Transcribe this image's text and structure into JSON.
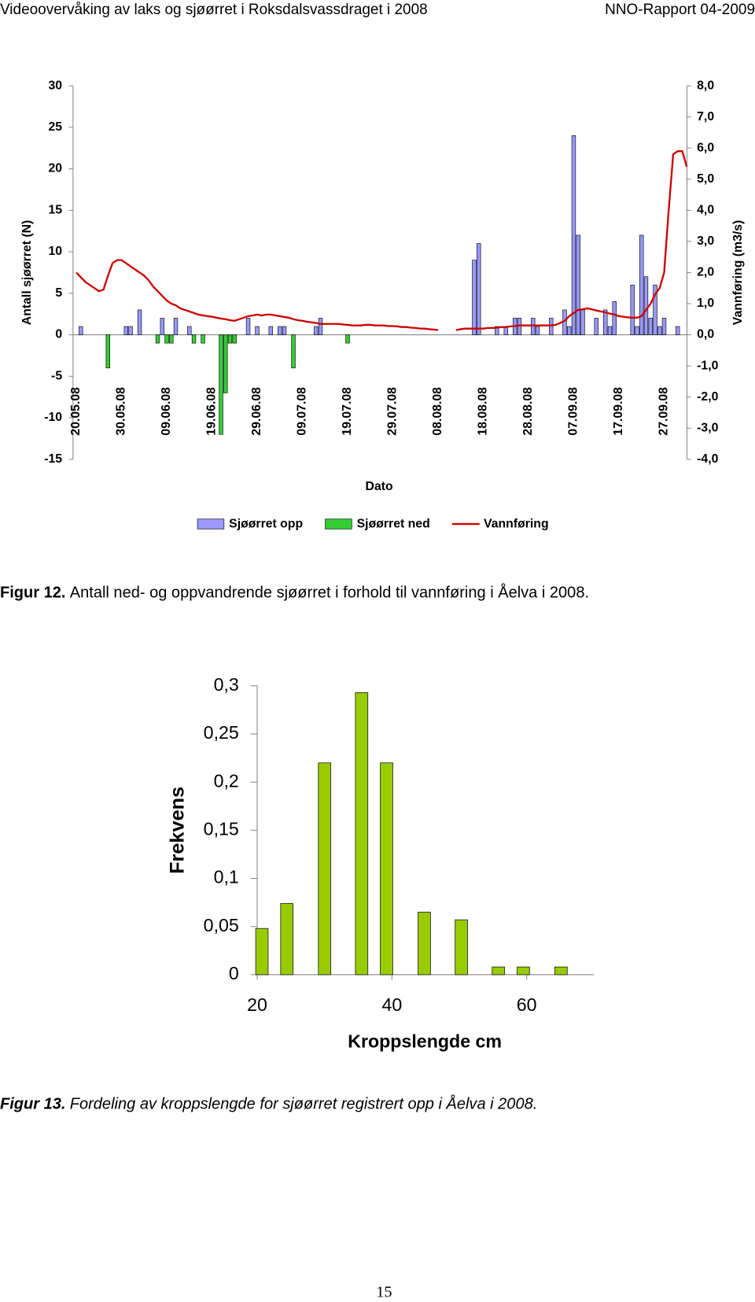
{
  "header": {
    "left": "Videoovervåking av laks og sjøørret i Roksdalsvassdraget i 2008",
    "right": "NNO-Rapport 04-2009"
  },
  "chart_data": [
    {
      "type": "bar",
      "x_label": "Dato",
      "y_label": "Antall sjøørret (N)",
      "y2_label": "Vannføring (m3/s)",
      "categories": [
        "20.05.08",
        null,
        null,
        null,
        null,
        null,
        null,
        null,
        null,
        null,
        "30.05.08",
        null,
        null,
        null,
        null,
        null,
        null,
        null,
        null,
        null,
        "09.06.08",
        null,
        null,
        null,
        null,
        null,
        null,
        null,
        null,
        null,
        "19.06.08",
        null,
        null,
        null,
        null,
        null,
        null,
        null,
        null,
        null,
        "29.06.08",
        null,
        null,
        null,
        null,
        null,
        null,
        null,
        null,
        null,
        "09.07.08",
        null,
        null,
        null,
        null,
        null,
        null,
        null,
        null,
        null,
        "19.07.08",
        null,
        null,
        null,
        null,
        null,
        null,
        null,
        null,
        null,
        "29.07.08",
        null,
        null,
        null,
        null,
        null,
        null,
        null,
        null,
        null,
        "08.08.08",
        null,
        null,
        null,
        null,
        null,
        null,
        null,
        null,
        null,
        "18.08.08",
        null,
        null,
        null,
        null,
        null,
        null,
        null,
        null,
        null,
        "28.08.08",
        null,
        null,
        null,
        null,
        null,
        null,
        null,
        null,
        null,
        "07.09.08",
        null,
        null,
        null,
        null,
        null,
        null,
        null,
        null,
        null,
        "17.09.08",
        null,
        null,
        null,
        null,
        null,
        null,
        null,
        null,
        null,
        "27.09.08",
        null,
        null,
        null,
        null,
        null
      ],
      "series": [
        {
          "name": "Sjøørret opp",
          "type": "bar",
          "color": "#9999ff",
          "values": [
            null,
            1,
            null,
            null,
            null,
            null,
            null,
            null,
            null,
            null,
            null,
            1,
            1,
            null,
            3,
            null,
            null,
            null,
            null,
            2,
            null,
            null,
            2,
            null,
            null,
            1,
            null,
            null,
            null,
            null,
            null,
            null,
            null,
            null,
            null,
            null,
            null,
            null,
            2,
            null,
            1,
            null,
            null,
            1,
            null,
            1,
            1,
            null,
            null,
            null,
            null,
            null,
            null,
            1,
            2,
            null,
            null,
            null,
            null,
            null,
            null,
            null,
            null,
            null,
            null,
            null,
            null,
            null,
            null,
            null,
            null,
            null,
            null,
            null,
            null,
            null,
            null,
            null,
            null,
            null,
            null,
            null,
            null,
            null,
            null,
            null,
            null,
            null,
            9,
            11,
            null,
            null,
            null,
            1,
            null,
            1,
            null,
            2,
            2,
            null,
            null,
            2,
            1,
            null,
            null,
            2,
            null,
            null,
            3,
            1,
            24,
            12,
            3,
            null,
            null,
            2,
            null,
            3,
            1,
            4,
            null,
            null,
            null,
            6,
            1,
            12,
            7,
            2,
            6,
            1,
            2,
            null,
            null,
            1,
            null,
            null
          ]
        },
        {
          "name": "Sjøørret ned",
          "type": "bar",
          "color": "#33cc33",
          "values": [
            null,
            null,
            null,
            null,
            null,
            null,
            null,
            -4,
            null,
            null,
            null,
            null,
            null,
            null,
            null,
            null,
            null,
            null,
            -1,
            null,
            -1,
            -1,
            null,
            null,
            null,
            null,
            -1,
            null,
            -1,
            null,
            null,
            null,
            -12,
            -7,
            -1,
            -1,
            null,
            null,
            null,
            null,
            null,
            null,
            null,
            null,
            null,
            null,
            null,
            null,
            -4,
            null,
            null,
            null,
            null,
            null,
            null,
            null,
            null,
            null,
            null,
            null,
            -1,
            null,
            null,
            null,
            null,
            null,
            null,
            null,
            null,
            null,
            null,
            null,
            null,
            null,
            null,
            null,
            null,
            null,
            null,
            null,
            null,
            null,
            null,
            null,
            null,
            null,
            null,
            null,
            null,
            null,
            null,
            null,
            null,
            null,
            null,
            null,
            null,
            null,
            null,
            null,
            null,
            null,
            null,
            null,
            null,
            null,
            null,
            null,
            null,
            null,
            null,
            null,
            null,
            null,
            null,
            null,
            null,
            null,
            null,
            null,
            null,
            null,
            null,
            null,
            null,
            null,
            null,
            null,
            null,
            null,
            null,
            null,
            null,
            null,
            null,
            null
          ]
        },
        {
          "name": "Vannføring",
          "type": "line",
          "axis": "y2",
          "color": "#cc0000",
          "values": [
            2.0,
            1.85,
            1.7,
            1.6,
            1.5,
            1.4,
            1.45,
            1.9,
            2.3,
            2.4,
            2.4,
            2.3,
            2.2,
            2.1,
            2.0,
            1.9,
            1.75,
            1.55,
            1.4,
            1.25,
            1.1,
            1.0,
            0.95,
            0.85,
            0.8,
            0.75,
            0.7,
            0.65,
            0.62,
            0.6,
            0.58,
            0.55,
            0.52,
            0.5,
            0.47,
            0.45,
            0.5,
            0.55,
            0.6,
            0.62,
            0.65,
            0.62,
            0.65,
            0.65,
            0.62,
            0.6,
            0.57,
            0.55,
            0.5,
            0.47,
            0.45,
            0.42,
            0.4,
            0.38,
            0.35,
            0.35,
            0.35,
            0.35,
            0.35,
            0.33,
            0.32,
            0.3,
            0.3,
            0.3,
            0.32,
            0.32,
            0.3,
            0.3,
            0.3,
            0.28,
            0.28,
            0.27,
            0.25,
            0.25,
            0.23,
            0.22,
            0.2,
            0.2,
            0.18,
            0.17,
            0.15,
            null,
            null,
            null,
            0.15,
            0.18,
            0.2,
            0.2,
            0.2,
            0.2,
            0.2,
            0.22,
            0.22,
            0.23,
            0.25,
            0.25,
            0.27,
            0.28,
            0.3,
            0.3,
            0.3,
            0.3,
            0.3,
            0.3,
            0.3,
            0.3,
            0.32,
            0.38,
            0.45,
            0.6,
            0.7,
            0.8,
            0.82,
            0.85,
            0.82,
            0.78,
            0.75,
            0.72,
            0.68,
            0.65,
            0.6,
            0.58,
            0.56,
            0.55,
            0.55,
            0.6,
            0.8,
            1.0,
            1.3,
            1.5,
            2.0,
            4.0,
            5.8,
            5.9,
            5.9,
            5.4
          ]
        }
      ],
      "ylim": [
        -15,
        30
      ],
      "yticks": [
        -15,
        -10,
        -5,
        0,
        5,
        10,
        15,
        20,
        25,
        30
      ],
      "y2lim": [
        -4,
        8
      ],
      "y2ticks": [
        {
          "value": -4,
          "label": "-4,0"
        },
        {
          "value": -3,
          "label": "-3,0"
        },
        {
          "value": -2,
          "label": "-2,0"
        },
        {
          "value": -1,
          "label": "-1,0"
        },
        {
          "value": 0,
          "label": "0,0"
        },
        {
          "value": 1,
          "label": "1,0"
        },
        {
          "value": 2,
          "label": "2,0"
        },
        {
          "value": 3,
          "label": "3,0"
        },
        {
          "value": 4,
          "label": "4,0"
        },
        {
          "value": 5,
          "label": "5,0"
        },
        {
          "value": 6,
          "label": "6,0"
        },
        {
          "value": 7,
          "label": "7,0"
        },
        {
          "value": 8,
          "label": "8,0"
        }
      ],
      "grid": false,
      "legend": "bottom"
    },
    {
      "type": "bar",
      "x_label": "Kroppslengde cm",
      "y_label": "Frekvens",
      "x": [
        20.7,
        24.4,
        30,
        35.5,
        39.2,
        44.8,
        50.3,
        55.8,
        59.5,
        65.1
      ],
      "values": [
        0.048,
        0.074,
        0.22,
        0.293,
        0.22,
        0.065,
        0.057,
        0.008,
        0.008,
        0.008
      ],
      "color": "#99cc00",
      "xlim": [
        20,
        70
      ],
      "xticks": [
        20,
        40,
        60
      ],
      "ylim": [
        0,
        0.3
      ],
      "yticks": [
        0,
        {
          "value": 0.05,
          "label": "0,05"
        },
        {
          "value": 0.1,
          "label": "0,1"
        },
        {
          "value": 0.15,
          "label": "0,15"
        },
        {
          "value": 0.2,
          "label": "0,2"
        },
        {
          "value": 0.25,
          "label": "0,25"
        },
        {
          "value": 0.3,
          "label": "0,3"
        }
      ],
      "grid": false
    }
  ],
  "captions": [
    {
      "label": "Figur 12.",
      "text": "Antall ned- og oppvandrende sjøørret i forhold til vannføring i Åelva i 2008."
    },
    {
      "label": "Figur 13.",
      "text": "Fordeling av kroppslengde for sjøørret registrert opp i Åelva i 2008."
    }
  ],
  "page_number": "15"
}
